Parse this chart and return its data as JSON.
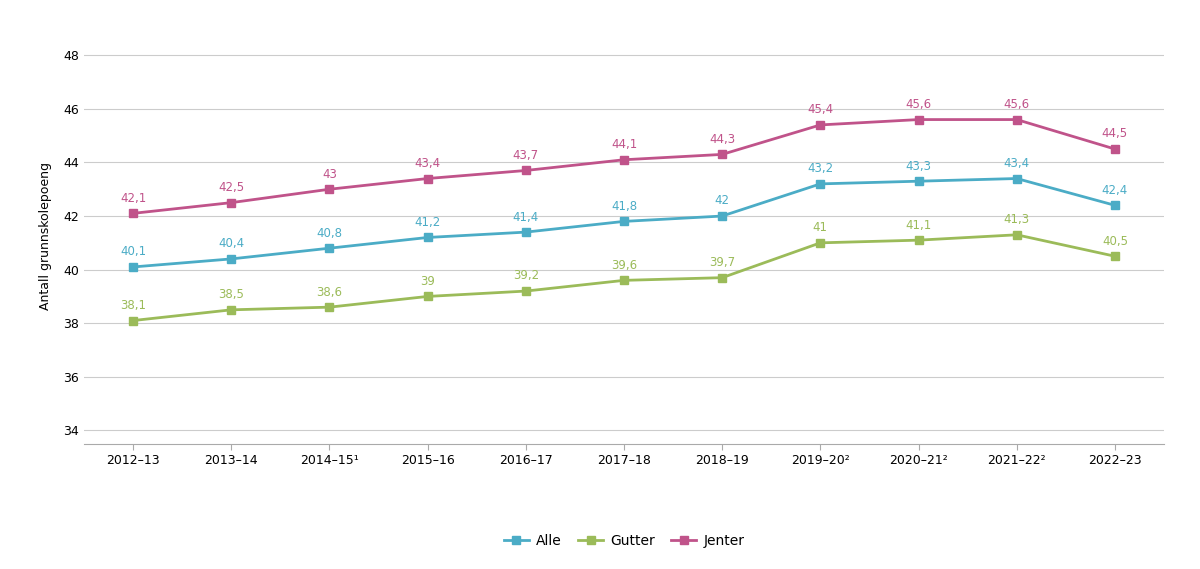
{
  "x_labels": [
    "2012–13",
    "2013–14",
    "2014–15¹",
    "2015–16",
    "2016–17",
    "2017–18",
    "2018–19",
    "2019–20²",
    "2020–21²",
    "2021–22²",
    "2022–23"
  ],
  "alle": [
    40.1,
    40.4,
    40.8,
    41.2,
    41.4,
    41.8,
    42.0,
    43.2,
    43.3,
    43.4,
    42.4
  ],
  "gutter": [
    38.1,
    38.5,
    38.6,
    39.0,
    39.2,
    39.6,
    39.7,
    41.0,
    41.1,
    41.3,
    40.5
  ],
  "jenter": [
    42.1,
    42.5,
    43.0,
    43.4,
    43.7,
    44.1,
    44.3,
    45.4,
    45.6,
    45.6,
    44.5
  ],
  "alle_labels": [
    "40,1",
    "40,4",
    "40,8",
    "41,2",
    "41,4",
    "41,8",
    "42",
    "43,2",
    "43,3",
    "43,4",
    "42,4"
  ],
  "gutter_labels": [
    "38,1",
    "38,5",
    "38,6",
    "39",
    "39,2",
    "39,6",
    "39,7",
    "41",
    "41,1",
    "41,3",
    "40,5"
  ],
  "jenter_labels": [
    "42,1",
    "42,5",
    "43",
    "43,4",
    "43,7",
    "44,1",
    "44,3",
    "45,4",
    "45,6",
    "45,6",
    "44,5"
  ],
  "alle_color": "#4BACC6",
  "gutter_color": "#9BBB59",
  "jenter_color": "#C0538A",
  "ylabel": "Antall grunnskolepoeng",
  "ylim": [
    33.5,
    49.0
  ],
  "yticks": [
    34,
    36,
    38,
    40,
    42,
    44,
    46,
    48
  ],
  "background_color": "#ffffff",
  "legend_labels": [
    "Alle",
    "Gutter",
    "Jenter"
  ]
}
